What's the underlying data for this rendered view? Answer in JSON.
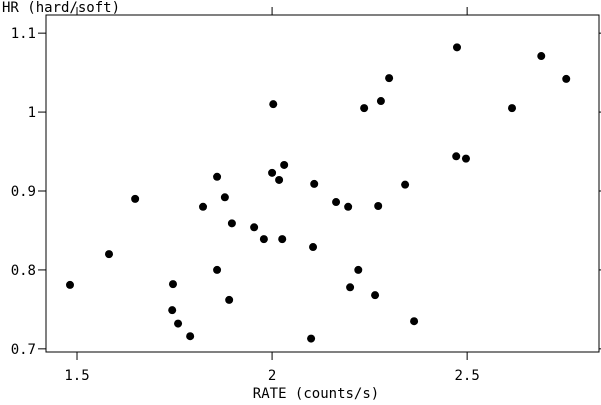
{
  "chart_data": {
    "type": "scatter",
    "ylabel": "HR (hard/soft)",
    "xlabel": "RATE (counts/s)",
    "xlim": [
      1.4205,
      2.838
    ],
    "ylim": [
      0.696,
      1.123
    ],
    "xticks": [
      1.5,
      2,
      2.5
    ],
    "yticks": [
      0.7,
      0.8,
      0.9,
      1,
      1.1
    ],
    "color": "#000000",
    "x": [
      1.482,
      1.582,
      1.649,
      1.746,
      1.744,
      1.759,
      1.79,
      1.823,
      1.859,
      1.859,
      1.879,
      1.897,
      1.89,
      1.954,
      1.979,
      2.003,
      2.0,
      2.018,
      2.031,
      2.026,
      2.1,
      2.108,
      2.105,
      2.164,
      2.195,
      2.221,
      2.2,
      2.236,
      2.279,
      2.3,
      2.272,
      2.264,
      2.341,
      2.364,
      2.474,
      2.472,
      2.497,
      2.615,
      2.69,
      2.754
    ],
    "y": [
      0.781,
      0.82,
      0.89,
      0.782,
      0.749,
      0.732,
      0.716,
      0.88,
      0.918,
      0.8,
      0.892,
      0.859,
      0.762,
      0.854,
      0.839,
      1.01,
      0.923,
      0.914,
      0.933,
      0.839,
      0.713,
      0.909,
      0.829,
      0.886,
      0.88,
      0.8,
      0.778,
      1.005,
      1.014,
      1.043,
      0.881,
      0.768,
      0.908,
      0.735,
      1.082,
      0.944,
      0.941,
      1.005,
      1.071,
      1.042
    ]
  }
}
